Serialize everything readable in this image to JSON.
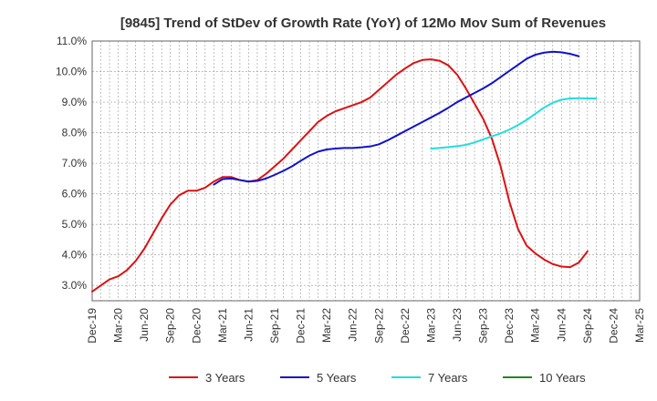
{
  "chart_data": {
    "type": "line",
    "title": "[9845]  Trend of StDev of Growth Rate (YoY) of 12Mo Mov Sum of Revenues",
    "xlabel": "",
    "ylabel": "",
    "ylim": [
      2.5,
      11.0
    ],
    "yticks": [
      3.0,
      4.0,
      5.0,
      6.0,
      7.0,
      8.0,
      9.0,
      10.0,
      11.0
    ],
    "ytick_labels": [
      "3.0%",
      "4.0%",
      "5.0%",
      "6.0%",
      "7.0%",
      "8.0%",
      "9.0%",
      "10.0%",
      "11.0%"
    ],
    "xtick_labels": [
      "Dec-19",
      "Mar-20",
      "Jun-20",
      "Sep-20",
      "Dec-20",
      "Mar-21",
      "Jun-21",
      "Sep-21",
      "Dec-21",
      "Mar-22",
      "Jun-22",
      "Sep-22",
      "Dec-22",
      "Mar-23",
      "Jun-23",
      "Sep-23",
      "Dec-23",
      "Mar-24",
      "Jun-24",
      "Sep-24",
      "Dec-24",
      "Mar-25"
    ],
    "x_months_total": 63,
    "grid": true,
    "legend_position": "bottom",
    "series": [
      {
        "name": "3 Years",
        "color": "#dd1111",
        "start_month": 0,
        "values": [
          2.8,
          3.0,
          3.2,
          3.3,
          3.5,
          3.8,
          4.2,
          4.7,
          5.2,
          5.65,
          5.95,
          6.1,
          6.1,
          6.2,
          6.4,
          6.55,
          6.55,
          6.45,
          6.4,
          6.45,
          6.65,
          6.9,
          7.15,
          7.45,
          7.75,
          8.05,
          8.35,
          8.55,
          8.7,
          8.8,
          8.9,
          9.0,
          9.15,
          9.4,
          9.65,
          9.9,
          10.1,
          10.28,
          10.38,
          10.4,
          10.35,
          10.2,
          9.9,
          9.45,
          8.95,
          8.45,
          7.8,
          6.9,
          5.75,
          4.85,
          4.3,
          4.05,
          3.85,
          3.7,
          3.62,
          3.6,
          3.75,
          4.12
        ]
      },
      {
        "name": "5 Years",
        "color": "#1111cc",
        "start_month": 14,
        "values": [
          6.3,
          6.48,
          6.5,
          6.45,
          6.4,
          6.42,
          6.5,
          6.62,
          6.75,
          6.9,
          7.08,
          7.25,
          7.38,
          7.45,
          7.48,
          7.5,
          7.5,
          7.52,
          7.55,
          7.62,
          7.75,
          7.9,
          8.05,
          8.2,
          8.35,
          8.5,
          8.65,
          8.82,
          9.0,
          9.15,
          9.3,
          9.45,
          9.62,
          9.82,
          10.02,
          10.22,
          10.42,
          10.55,
          10.62,
          10.65,
          10.63,
          10.58,
          10.5
        ]
      },
      {
        "name": "7 Years",
        "color": "#22dddd",
        "start_month": 39,
        "values": [
          7.48,
          7.5,
          7.53,
          7.56,
          7.6,
          7.68,
          7.78,
          7.88,
          7.98,
          8.1,
          8.25,
          8.42,
          8.62,
          8.82,
          8.98,
          9.08,
          9.12,
          9.13,
          9.12,
          9.12
        ]
      },
      {
        "name": "10 Years",
        "color": "#228822",
        "start_month": 0,
        "values": []
      }
    ]
  }
}
